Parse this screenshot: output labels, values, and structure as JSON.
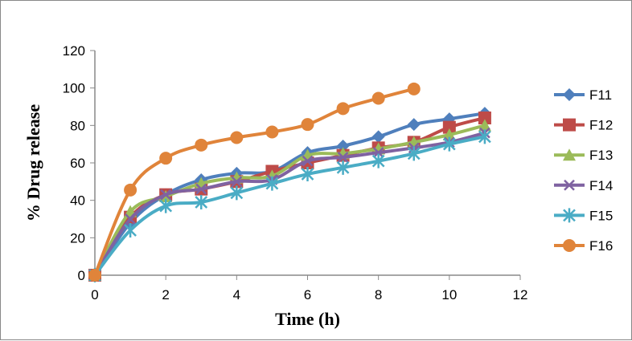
{
  "chart_data": {
    "type": "line",
    "title": "",
    "xlabel": "Time (h)",
    "ylabel": "% Drug release",
    "xlim": [
      0,
      12
    ],
    "ylim": [
      0,
      120
    ],
    "xticks": [
      0,
      2,
      4,
      6,
      8,
      10,
      12
    ],
    "yticks": [
      0,
      20,
      40,
      60,
      80,
      100,
      120
    ],
    "legend": "right",
    "series": [
      {
        "name": "F11",
        "color": "#4F7FBC",
        "marker": "diamond",
        "x": [
          0,
          1,
          2,
          3,
          4,
          5,
          6,
          7,
          8,
          9,
          10,
          11
        ],
        "y": [
          0,
          28,
          43,
          51,
          54.5,
          55.5,
          65.5,
          69,
          74,
          80.5,
          83.5,
          86.5
        ]
      },
      {
        "name": "F12",
        "color": "#BE4B48",
        "marker": "square",
        "x": [
          0,
          1,
          2,
          3,
          4,
          5,
          6,
          7,
          8,
          9,
          10,
          11
        ],
        "y": [
          0,
          31,
          43,
          46,
          50,
          55.5,
          60,
          64,
          68,
          71,
          79,
          84
        ]
      },
      {
        "name": "F13",
        "color": "#9BBB59",
        "marker": "triangle",
        "x": [
          0,
          1,
          2,
          3,
          4,
          5,
          6,
          7,
          8,
          9,
          10,
          11
        ],
        "y": [
          0,
          34,
          42,
          49,
          52,
          53,
          64,
          65,
          67.5,
          71,
          75,
          80
        ]
      },
      {
        "name": "F14",
        "color": "#7F62A1",
        "marker": "x",
        "x": [
          0,
          1,
          2,
          3,
          4,
          5,
          6,
          7,
          8,
          9,
          10,
          11
        ],
        "y": [
          0,
          30,
          43,
          46,
          50,
          51,
          61,
          63,
          65.5,
          68,
          71,
          76
        ]
      },
      {
        "name": "F15",
        "color": "#4AACC5",
        "marker": "star",
        "x": [
          0,
          1,
          2,
          3,
          4,
          5,
          6,
          7,
          8,
          9,
          10,
          11
        ],
        "y": [
          0,
          24,
          37,
          39,
          44,
          49,
          54,
          57.5,
          61,
          65,
          70,
          74
        ]
      },
      {
        "name": "F16",
        "color": "#E0843A",
        "marker": "circle",
        "x": [
          0,
          1,
          2,
          3,
          4,
          5,
          6,
          7,
          8,
          9
        ],
        "y": [
          0,
          45.5,
          62.5,
          69.5,
          73.5,
          76.5,
          80.5,
          89,
          94.5,
          99.5
        ]
      }
    ]
  }
}
